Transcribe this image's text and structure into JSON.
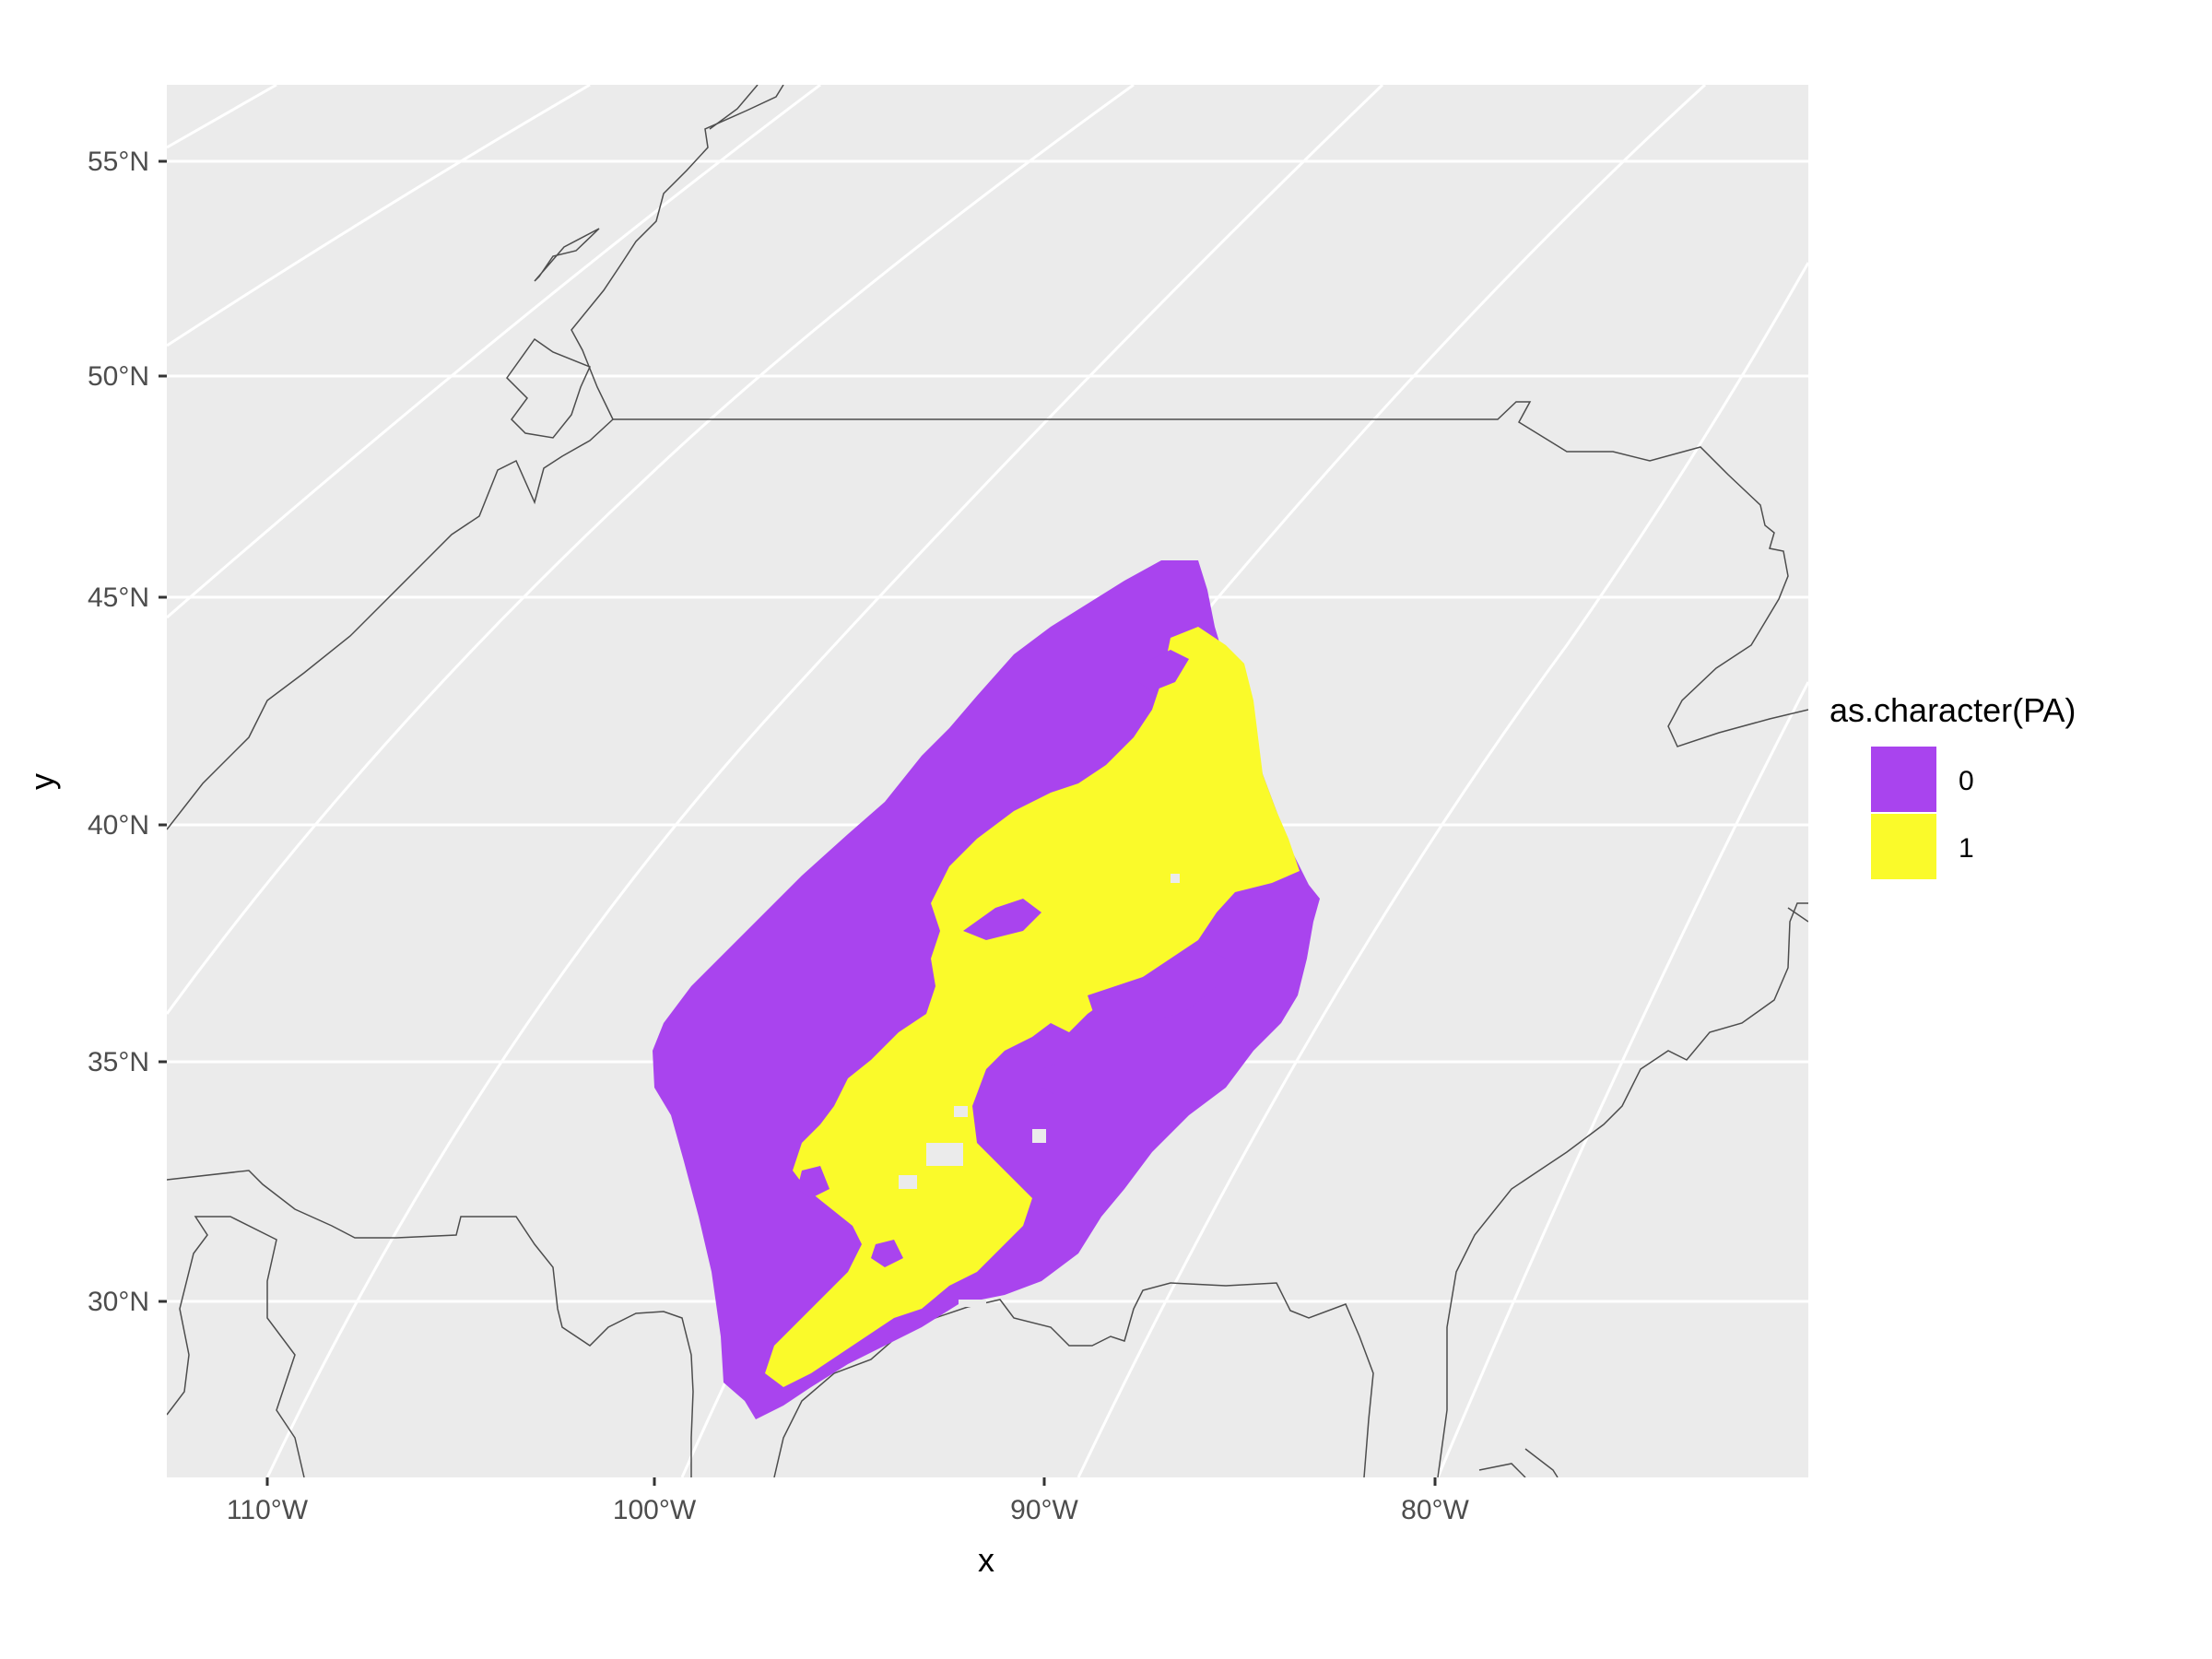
{
  "chart_data": {
    "type": "map",
    "xlabel": "x",
    "ylabel": "y",
    "x_ticks": [
      "110°W",
      "100°W",
      "90°W",
      "80°W"
    ],
    "y_ticks": [
      "30°N",
      "35°N",
      "40°N",
      "45°N",
      "50°N",
      "55°N"
    ],
    "legend": {
      "title": "as.character(PA)",
      "entries": [
        {
          "label": "0",
          "color": "#a944ee"
        },
        {
          "label": "1",
          "color": "#fafa2a"
        }
      ]
    },
    "region": {
      "lon_range": [
        -100,
        -83
      ],
      "lat_range": [
        28,
        46
      ]
    },
    "panel_background": "#ebebeb",
    "gridline_color": "#ffffff",
    "border_color": "#4d4d4d",
    "grid": true,
    "legend_position": "right"
  }
}
